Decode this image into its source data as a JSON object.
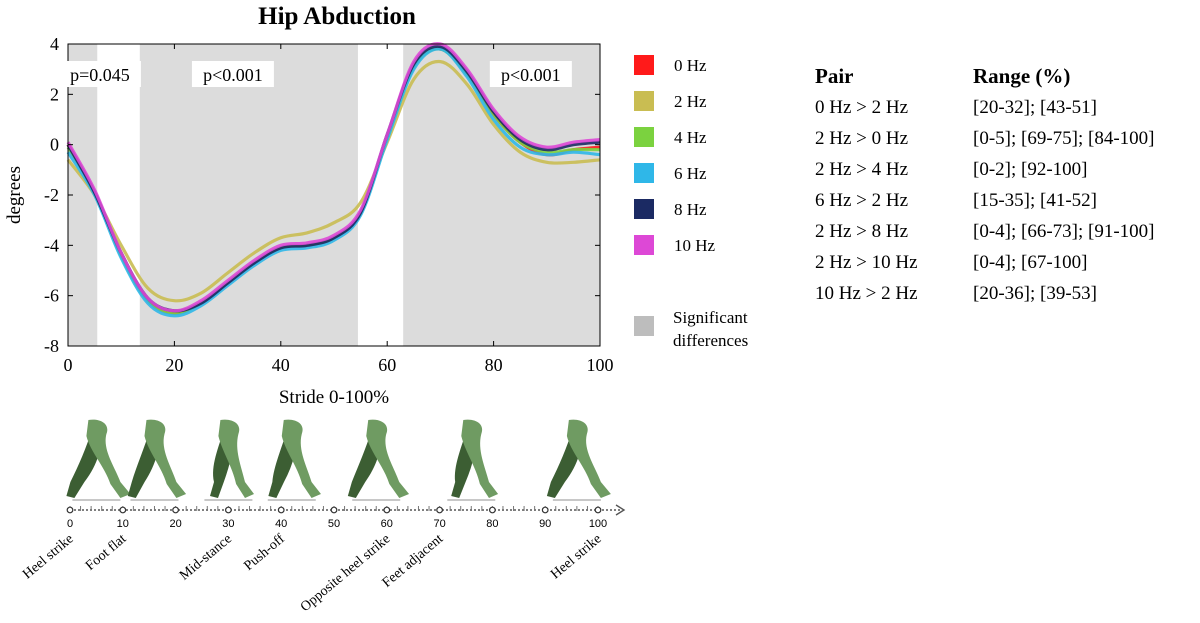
{
  "chart_data": {
    "type": "line",
    "title": "Hip Abduction",
    "xlabel": "Stride 0-100%",
    "ylabel": "degrees",
    "xlim": [
      0,
      100
    ],
    "ylim": [
      -8,
      4
    ],
    "xticks": [
      0,
      20,
      40,
      60,
      80,
      100
    ],
    "yticks": [
      4,
      2,
      0,
      -2,
      -4,
      -6,
      -8
    ],
    "x": [
      0,
      5,
      10,
      15,
      20,
      25,
      30,
      35,
      40,
      45,
      50,
      55,
      60,
      65,
      70,
      75,
      80,
      85,
      90,
      95,
      100
    ],
    "series": [
      {
        "name": "0 Hz",
        "color": "#ff1a1a",
        "values": [
          0.0,
          -1.9,
          -4.4,
          -6.2,
          -6.7,
          -6.3,
          -5.5,
          -4.7,
          -4.1,
          -4.0,
          -3.7,
          -2.7,
          0.3,
          3.1,
          3.8,
          2.8,
          1.2,
          0.1,
          -0.4,
          -0.2,
          -0.1
        ]
      },
      {
        "name": "2 Hz",
        "color": "#c9bd52",
        "values": [
          -0.6,
          -2.0,
          -4.0,
          -5.7,
          -6.2,
          -5.9,
          -5.1,
          -4.3,
          -3.7,
          -3.5,
          -3.1,
          -2.3,
          0.1,
          2.6,
          3.3,
          2.4,
          0.8,
          -0.3,
          -0.7,
          -0.7,
          -0.6
        ]
      },
      {
        "name": "4 Hz",
        "color": "#7bd23f",
        "values": [
          -0.1,
          -1.9,
          -4.4,
          -6.2,
          -6.7,
          -6.3,
          -5.5,
          -4.7,
          -4.1,
          -4.0,
          -3.7,
          -2.7,
          0.3,
          3.1,
          3.8,
          2.8,
          1.2,
          0.1,
          -0.3,
          -0.2,
          -0.2
        ]
      },
      {
        "name": "6 Hz",
        "color": "#2fb7e8",
        "values": [
          -0.3,
          -2.0,
          -4.5,
          -6.3,
          -6.8,
          -6.4,
          -5.6,
          -4.8,
          -4.2,
          -4.1,
          -3.8,
          -2.8,
          0.2,
          3.0,
          3.8,
          2.7,
          1.0,
          -0.1,
          -0.4,
          -0.3,
          -0.4
        ]
      },
      {
        "name": "8 Hz",
        "color": "#1b2a63",
        "values": [
          0.0,
          -1.9,
          -4.3,
          -6.1,
          -6.6,
          -6.3,
          -5.5,
          -4.7,
          -4.1,
          -4.0,
          -3.7,
          -2.7,
          0.4,
          3.2,
          3.9,
          2.9,
          1.3,
          0.2,
          -0.2,
          0.0,
          0.1
        ]
      },
      {
        "name": "10 Hz",
        "color": "#dd48d6",
        "values": [
          0.1,
          -1.8,
          -4.3,
          -6.1,
          -6.6,
          -6.2,
          -5.4,
          -4.6,
          -4.0,
          -3.9,
          -3.6,
          -2.6,
          0.4,
          3.3,
          4.0,
          3.0,
          1.4,
          0.3,
          -0.1,
          0.1,
          0.2
        ]
      }
    ],
    "significance": {
      "color": "#dcdcdc",
      "regions": [
        [
          0,
          5.5
        ],
        [
          13.5,
          54.5
        ],
        [
          63,
          100
        ]
      ],
      "labels": [
        {
          "text": "p=0.045",
          "x": 6
        },
        {
          "text": "p<0.001",
          "x": 31
        },
        {
          "text": "p<0.001",
          "x": 87
        }
      ]
    },
    "significance_legend": "Significant\ndifferences"
  },
  "gait": {
    "ticks": [
      0,
      10,
      20,
      30,
      40,
      50,
      60,
      70,
      80,
      90,
      100
    ],
    "phases": [
      {
        "label": "Heel strike",
        "at": 0
      },
      {
        "label": "Foot flat",
        "at": 10
      },
      {
        "label": "Mid-stance",
        "at": 30
      },
      {
        "label": "Push-off",
        "at": 40
      },
      {
        "label": "Opposite heel strike",
        "at": 60
      },
      {
        "label": "Feet adjacent",
        "at": 70
      },
      {
        "label": "Heel strike",
        "at": 100
      }
    ],
    "colors": {
      "front": "#6f9b62",
      "back": "#3c5e33",
      "ground": "#c8c8c8"
    }
  },
  "table": {
    "header": {
      "pair": "Pair",
      "range": "Range (%)"
    },
    "rows": [
      {
        "pair": "0 Hz > 2 Hz",
        "range": "[20-32]; [43-51]"
      },
      {
        "pair": "2 Hz > 0 Hz",
        "range": "[0-5]; [69-75]; [84-100]"
      },
      {
        "pair": "2 Hz > 4 Hz",
        "range": "[0-2]; [92-100]"
      },
      {
        "pair": "6 Hz > 2 Hz",
        "range": "[15-35]; [41-52]"
      },
      {
        "pair": "2 Hz > 8 Hz",
        "range": "[0-4]; [66-73]; [91-100]"
      },
      {
        "pair": "2 Hz > 10 Hz",
        "range": "[0-4]; [67-100]"
      },
      {
        "pair": "10 Hz > 2 Hz",
        "range": "[20-36]; [39-53]"
      }
    ]
  }
}
